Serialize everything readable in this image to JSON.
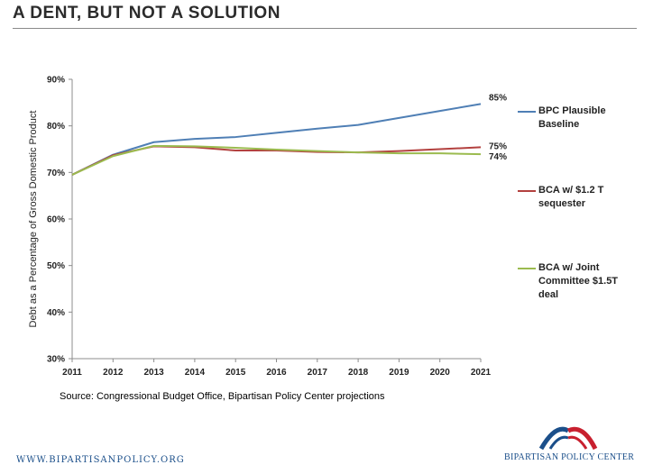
{
  "header": {
    "title": "A DENT, BUT NOT A SOLUTION"
  },
  "chart_data": {
    "type": "line",
    "title": "A DENT, BUT NOT A SOLUTION",
    "xlabel": "",
    "ylabel": "Debt as a Percentage of Gross Domestic Product",
    "x": [
      2011,
      2012,
      2013,
      2014,
      2015,
      2016,
      2017,
      2018,
      2019,
      2020,
      2021
    ],
    "x_tick_labels": [
      "2011",
      "2012",
      "2013",
      "2014",
      "2015",
      "2016",
      "2017",
      "2018",
      "2019",
      "2020",
      "2021"
    ],
    "ylim": [
      30,
      90
    ],
    "y_ticks": [
      30,
      40,
      50,
      60,
      70,
      80,
      90
    ],
    "y_tick_labels": [
      "30%",
      "40%",
      "50%",
      "60%",
      "70%",
      "80%",
      "90%"
    ],
    "grid": false,
    "legend_position": "right",
    "series": [
      {
        "name": "BPC Plausible Baseline",
        "legend_lines": [
          "BPC Plausible",
          "Baseline"
        ],
        "color": "#4f7fb5",
        "values": [
          69.5,
          73.8,
          76.5,
          77.2,
          77.6,
          78.5,
          79.4,
          80.2,
          81.7,
          83.2,
          84.7
        ],
        "end_label": "85%"
      },
      {
        "name": "BCA w/ $1.2 T sequester",
        "legend_lines": [
          "BCA w/ $1.2 T",
          "sequester"
        ],
        "color": "#b3413f",
        "values": [
          69.5,
          73.7,
          75.6,
          75.4,
          74.7,
          74.7,
          74.4,
          74.3,
          74.6,
          75.0,
          75.4
        ],
        "end_label": "75%"
      },
      {
        "name": "BCA w/ Joint Committee $1.5T deal",
        "legend_lines": [
          "BCA w/ Joint",
          "Committee $1.5T",
          "deal"
        ],
        "color": "#9bbb4f",
        "values": [
          69.5,
          73.5,
          75.7,
          75.6,
          75.3,
          74.9,
          74.6,
          74.3,
          74.1,
          74.1,
          73.9
        ],
        "end_label": "74%"
      }
    ],
    "source": "Source: Congressional Budget Office, Bipartisan Policy Center projections"
  },
  "footer": {
    "url": "WWW.BIPARTISANPOLICY.ORG",
    "org": "BIPARTISAN POLICY CENTER"
  }
}
